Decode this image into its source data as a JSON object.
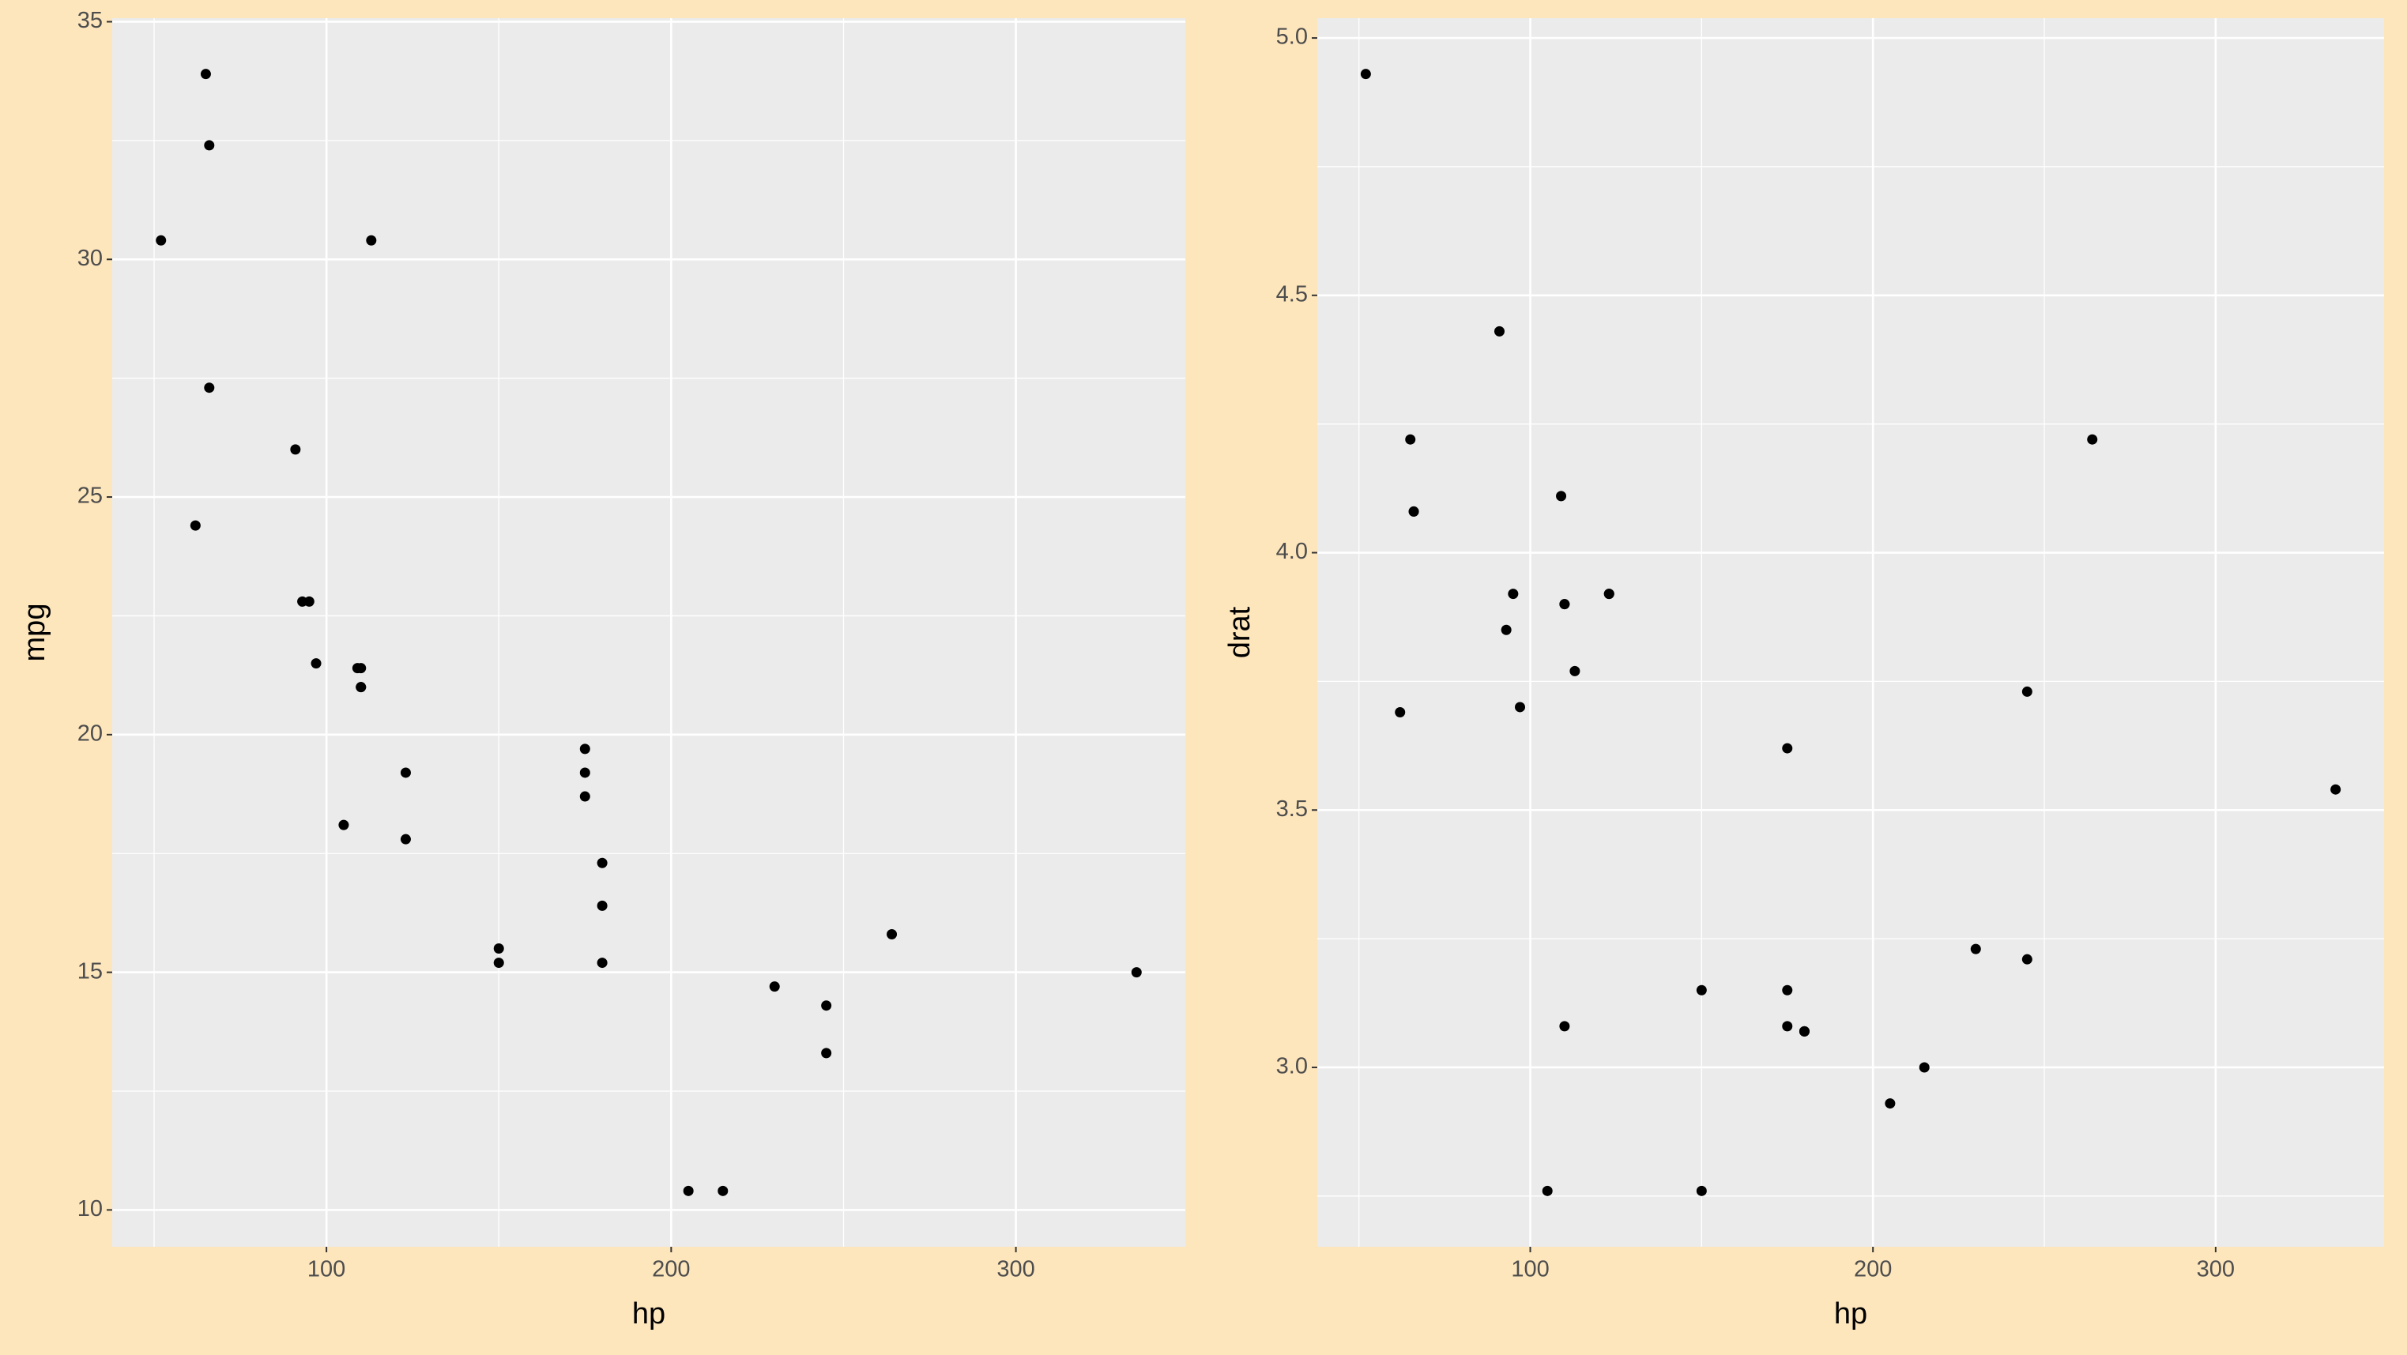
{
  "chart_data": [
    {
      "type": "scatter",
      "x_label": "hp",
      "y_label": "mpg",
      "x": [
        110,
        110,
        93,
        110,
        175,
        105,
        245,
        62,
        95,
        123,
        123,
        180,
        180,
        180,
        205,
        215,
        230,
        66,
        52,
        65,
        97,
        150,
        150,
        245,
        175,
        66,
        91,
        113,
        264,
        175,
        335,
        109
      ],
      "series": [
        {
          "color": "#000000",
          "values": [
            21.0,
            21.0,
            22.8,
            21.4,
            18.7,
            18.1,
            14.3,
            24.4,
            22.8,
            19.2,
            17.8,
            16.4,
            17.3,
            15.2,
            10.4,
            10.4,
            14.7,
            32.4,
            30.4,
            33.9,
            21.5,
            15.5,
            15.2,
            13.3,
            19.2,
            27.3,
            26.0,
            30.4,
            15.8,
            19.7,
            15.0,
            21.4
          ]
        }
      ],
      "xlim": [
        37.85,
        349.15
      ],
      "ylim": [
        9.225,
        35.075
      ],
      "xticks": [
        100,
        200,
        300
      ],
      "yticks": [
        10,
        15,
        20,
        25,
        30,
        35
      ],
      "minor_xticks": [
        50,
        150,
        250
      ],
      "minor_yticks": [
        12.5,
        17.5,
        22.5,
        27.5,
        32.5
      ],
      "grid": true
    },
    {
      "type": "scatter",
      "x_label": "hp",
      "y_label": "drat",
      "x": [
        110,
        110,
        93,
        110,
        175,
        105,
        245,
        62,
        95,
        123,
        123,
        180,
        180,
        180,
        205,
        215,
        230,
        66,
        52,
        65,
        97,
        150,
        150,
        245,
        175,
        66,
        91,
        113,
        264,
        175,
        335,
        109
      ],
      "series": [
        {
          "color": "#000000",
          "values": [
            3.9,
            3.9,
            3.85,
            3.08,
            3.15,
            2.76,
            3.21,
            3.69,
            3.92,
            3.92,
            3.92,
            3.07,
            3.07,
            3.07,
            2.93,
            3.0,
            3.23,
            4.08,
            4.93,
            4.22,
            3.7,
            2.76,
            3.15,
            3.73,
            3.08,
            4.08,
            4.43,
            3.77,
            4.22,
            3.62,
            3.54,
            4.11
          ]
        }
      ],
      "xlim": [
        37.85,
        349.15
      ],
      "ylim": [
        2.6515,
        5.0385
      ],
      "xticks": [
        100,
        200,
        300
      ],
      "yticks": [
        {
          "value": 3,
          "label": "3.0"
        },
        {
          "value": 3.5,
          "label": "3.5"
        },
        {
          "value": 4,
          "label": "4.0"
        },
        {
          "value": 4.5,
          "label": "4.5"
        },
        {
          "value": 5,
          "label": "5.0"
        }
      ],
      "minor_xticks": [
        50,
        150,
        250
      ],
      "minor_yticks": [
        2.75,
        3.25,
        3.75,
        4.25,
        4.75
      ],
      "grid": true
    }
  ]
}
